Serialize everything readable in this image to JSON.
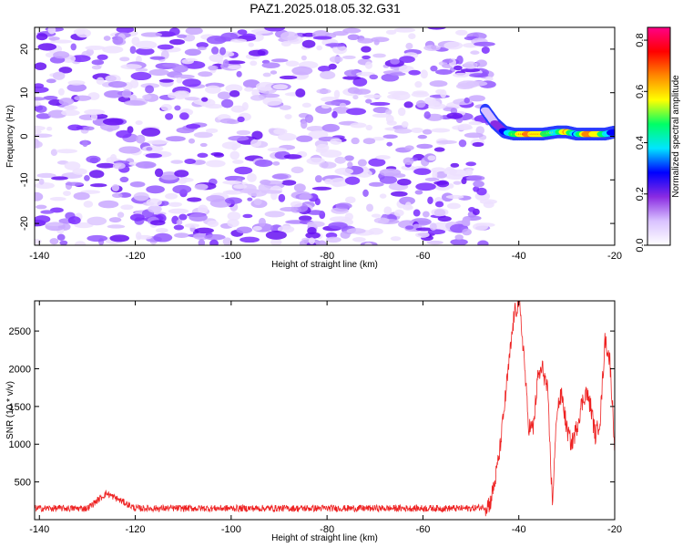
{
  "title": "PAZ1.2025.018.05.32.G31",
  "chart_data": [
    {
      "type": "heatmap",
      "xlabel": "Height of straight line (km)",
      "ylabel": "Frequency (Hz)",
      "xlim": [
        -141,
        -20
      ],
      "ylim": [
        -25,
        25
      ],
      "x_ticks": [
        -140,
        -120,
        -100,
        -80,
        -60,
        -40,
        -20
      ],
      "y_ticks": [
        -20,
        -10,
        0,
        10,
        20
      ],
      "colorbar": {
        "label": "Normalized spectral amplitude",
        "range": [
          0.0,
          0.85
        ],
        "ticks": [
          0.0,
          0.2,
          0.4,
          0.6,
          0.8
        ],
        "colors": [
          "#ffffff",
          "#d9c2ff",
          "#8a2be2",
          "#0000ff",
          "#00e5ff",
          "#00ff66",
          "#ffff00",
          "#ff8800",
          "#ff0000",
          "#ff0088"
        ]
      },
      "noise_region": {
        "x": [
          -141,
          -46
        ],
        "freq": [
          -25,
          25
        ],
        "amplitude": [
          0.0,
          0.1
        ]
      },
      "signal_track": {
        "description_points_x": [
          -47,
          -45,
          -43,
          -41,
          -38,
          -35,
          -32,
          -30,
          -28,
          -26,
          -24,
          -22,
          -20
        ],
        "freq": [
          6,
          3,
          1,
          0.5,
          0.5,
          0.5,
          1,
          1,
          0.5,
          0.5,
          0.5,
          0.5,
          1
        ],
        "amplitude": [
          0.1,
          0.2,
          0.35,
          0.6,
          0.85,
          0.7,
          0.5,
          0.85,
          0.4,
          0.85,
          0.8,
          0.6,
          0.3
        ]
      }
    },
    {
      "type": "line",
      "xlabel": "Height of straight line (km)",
      "ylabel": "SNR (10 * v/v)",
      "xlim": [
        -141,
        -20
      ],
      "ylim": [
        0,
        2900
      ],
      "x_ticks": [
        -140,
        -120,
        -100,
        -80,
        -60,
        -40,
        -20
      ],
      "y_ticks": [
        500,
        1000,
        1500,
        2000,
        2500
      ],
      "color": "#ee2222",
      "series": [
        {
          "x": [
            -141,
            -130,
            -126,
            -120,
            -110,
            -100,
            -90,
            -80,
            -70,
            -60,
            -50,
            -47,
            -46,
            -45,
            -44,
            -43,
            -42,
            -41,
            -40,
            -39,
            -38,
            -37,
            -36,
            -35,
            -34,
            -33,
            -32,
            -31,
            -30,
            -29,
            -28,
            -27,
            -26,
            -25,
            -24,
            -23,
            -22,
            -21,
            -20
          ],
          "y": [
            150,
            150,
            350,
            150,
            150,
            150,
            150,
            150,
            150,
            150,
            150,
            170,
            220,
            500,
            900,
            1500,
            2100,
            2700,
            2900,
            2250,
            1250,
            1200,
            1900,
            2000,
            1700,
            220,
            1500,
            1650,
            1200,
            1000,
            1200,
            1500,
            1700,
            1500,
            1100,
            1350,
            2400,
            2100,
            1000
          ]
        }
      ]
    }
  ]
}
